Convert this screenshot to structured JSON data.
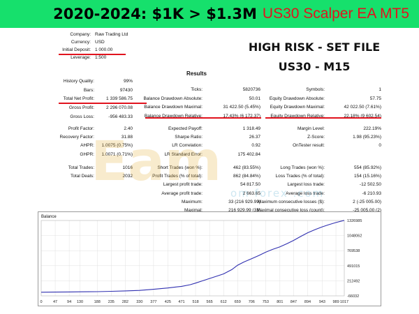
{
  "banner": {
    "title": "2020-2024: $1K > $1.3M",
    "subtitle": "US30 Scalper EA MT5"
  },
  "headline": {
    "line1": "HIGH RISK - SET FILE",
    "line2": "US30 - M15"
  },
  "company_info": [
    {
      "label": "Company:",
      "value": "Raw Trading Ltd"
    },
    {
      "label": "Currency:",
      "value": "USD"
    },
    {
      "label": "Initial Deposit:",
      "value": "1 000.00"
    },
    {
      "label": "Leverage:",
      "value": "1:500"
    }
  ],
  "results_title": "Results",
  "results": {
    "col1": [
      {
        "label": "History Quality:",
        "value": "99%"
      },
      {
        "label": "Bars:",
        "value": "97430"
      },
      {
        "label": "Total Net Profit:",
        "value": "1 339 586.75"
      },
      {
        "label": "Gross Profit:",
        "value": "2 296 070.08"
      },
      {
        "label": "Gross Loss:",
        "value": "-956 483.33"
      }
    ],
    "col2": [
      {
        "label": "Ticks:",
        "value": "5820736"
      },
      {
        "label": "Balance Drawdown Absolute:",
        "value": "50.01"
      },
      {
        "label": "Balance Drawdown Maximal:",
        "value": "31 422.50 (5.45%)"
      },
      {
        "label": "Balance Drawdown Relative:",
        "value": "17.43% (6 172.37)"
      }
    ],
    "col3": [
      {
        "label": "Symbols:",
        "value": "1"
      },
      {
        "label": "Equity Drawdown Absolute:",
        "value": "57.75"
      },
      {
        "label": "Equity Drawdown Maximal:",
        "value": "42 022.50 (7.61%)"
      },
      {
        "label": "Equity Drawdown Relative:",
        "value": "22.18% (9 602.54)"
      }
    ],
    "ratios_col1": [
      {
        "label": "Profit Factor:",
        "value": "2.40"
      },
      {
        "label": "Recovery Factor:",
        "value": "31.88"
      },
      {
        "label": "AHPR:",
        "value": "1.0075 (0.75%)"
      },
      {
        "label": "GHPR:",
        "value": "1.0071 (0.71%)"
      }
    ],
    "ratios_col2": [
      {
        "label": "Expected Payoff:",
        "value": "1 318.49"
      },
      {
        "label": "Sharpe Ratio:",
        "value": "26.37"
      },
      {
        "label": "LR Correlation:",
        "value": "0.92"
      },
      {
        "label": "LR Standard Error:",
        "value": "175 402.84"
      }
    ],
    "ratios_col3": [
      {
        "label": "Margin Level:",
        "value": "222.19%"
      },
      {
        "label": "Z-Score:",
        "value": "1.98 (95.23%)"
      },
      {
        "label": "OnTester result:",
        "value": "0"
      }
    ],
    "trades_col1": [
      {
        "label": "Total Trades:",
        "value": "1016"
      },
      {
        "label": "Total Deals:",
        "value": "2032"
      }
    ],
    "trades_col2": [
      {
        "label": "Short Trades (won %):",
        "value": "462 (83.55%)"
      },
      {
        "label": "Profit Trades (% of total):",
        "value": "862 (84.84%)"
      },
      {
        "label": "Largest profit trade:",
        "value": "54 817.50"
      },
      {
        "label": "Average profit trade:",
        "value": "2 663.65"
      },
      {
        "label": "Maximum:",
        "value": "33 (216 929.99)"
      },
      {
        "label": "Maximal:",
        "value": "216 929.99 (33)"
      },
      {
        "label": "Average:",
        "value": "6"
      }
    ],
    "trades_col3": [
      {
        "label": "Long Trades (won %):",
        "value": "554 (85.92%)"
      },
      {
        "label": "Loss Trades (% of total):",
        "value": "154 (15.16%)"
      },
      {
        "label": "Largest loss trade:",
        "value": "-12 502.50"
      },
      {
        "label": "Average loss trade:",
        "value": "-6 210.93"
      },
      {
        "label": "Maximum consecutive losses ($):",
        "value": "2 (-25 005.00)"
      },
      {
        "label": "Maximal consecutive loss (count):",
        "value": "-25 005.00 (2)"
      },
      {
        "label": "Average consecutive losses:",
        "value": "1"
      }
    ]
  },
  "watermark": {
    "big": "Eam",
    "small": "om forex .com"
  },
  "chart_data": {
    "type": "line",
    "title": "Balance",
    "xlabel": "",
    "ylabel": "",
    "x_ticks": [
      "0",
      "47",
      "94",
      "130",
      "188",
      "235",
      "282",
      "330",
      "377",
      "425",
      "471",
      "518",
      "565",
      "612",
      "659",
      "706",
      "753",
      "801",
      "847",
      "894",
      "943",
      "989",
      "1017"
    ],
    "y_ticks": [
      "1326985",
      "1048062",
      "769538",
      "491015",
      "212492",
      "-66032"
    ],
    "ylim": [
      -66032,
      1326985
    ],
    "xlim": [
      0,
      1017
    ],
    "series": [
      {
        "values_x": [
          0,
          47,
          94,
          130,
          188,
          235,
          282,
          330,
          377,
          425,
          471,
          500,
          518,
          540,
          565,
          590,
          612,
          640,
          659,
          680,
          706,
          730,
          753,
          775,
          801,
          825,
          847,
          870,
          894,
          920,
          943,
          965,
          989,
          1017
        ],
        "values_y": [
          1000,
          3000,
          6000,
          9000,
          12000,
          18000,
          25000,
          35000,
          55000,
          80000,
          110000,
          140000,
          170000,
          210000,
          255000,
          300000,
          340000,
          420000,
          500000,
          560000,
          620000,
          680000,
          740000,
          790000,
          840000,
          900000,
          960000,
          1030000,
          1100000,
          1160000,
          1210000,
          1250000,
          1290000,
          1330000
        ]
      }
    ],
    "grid": true,
    "line_color": "#2f2fb0"
  }
}
